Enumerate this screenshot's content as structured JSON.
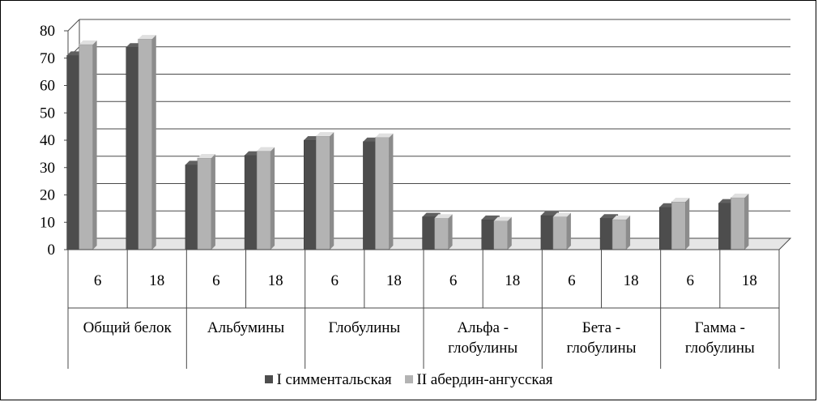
{
  "chart_data": {
    "type": "bar",
    "groups": [
      "Общий белок",
      "Альбумины",
      "Глобулины",
      "Альфа - глобулины",
      "Бета - глобулины",
      "Гамма - глобулины"
    ],
    "group_lines": [
      [
        "Общий белок"
      ],
      [
        "Альбумины"
      ],
      [
        "Глобулины"
      ],
      [
        "Альфа -",
        "глобулины"
      ],
      [
        "Бета -",
        "глобулины"
      ],
      [
        "Гамма -",
        "глобулины"
      ]
    ],
    "subcategories": [
      "6",
      "18",
      "6",
      "18",
      "6",
      "18",
      "6",
      "18",
      "6",
      "18",
      "6",
      "18"
    ],
    "series": [
      {
        "name": "I симментальская",
        "color": "#4d4d4d",
        "values": [
          71,
          74,
          31,
          34.5,
          40,
          39.5,
          12,
          11,
          12.5,
          11.5,
          15.5,
          17
        ]
      },
      {
        "name": "II абердин-ангусская",
        "color": "#b3b3b3",
        "values": [
          75,
          77,
          33.5,
          36,
          41.5,
          41,
          11.5,
          10.5,
          12,
          11,
          17.5,
          19
        ]
      }
    ],
    "ylim": [
      0,
      80
    ],
    "yticks": [
      "0",
      "10",
      "20",
      "30",
      "40",
      "50",
      "60",
      "70",
      "80"
    ],
    "grid": true,
    "style": "3d-column",
    "legend": "bottom"
  }
}
